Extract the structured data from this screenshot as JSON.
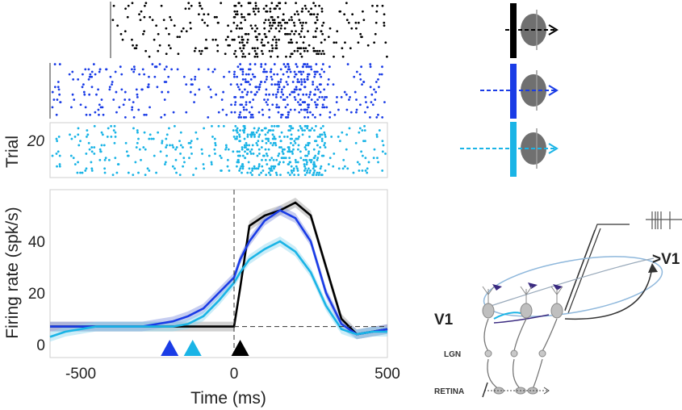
{
  "chart_data": {
    "type": "line",
    "xlabel": "Time (ms)",
    "ylabel": "Firing rate (spk/s)",
    "raster_ylabel": "Trial",
    "raster_tick": "20",
    "xlim": [
      -600,
      500
    ],
    "ylim": [
      -5,
      60
    ],
    "xticks": [
      "-500",
      "0",
      "500"
    ],
    "xtick_values": [
      -500,
      0,
      500
    ],
    "yticks": [
      "0",
      "20",
      "40"
    ],
    "ytick_values": [
      0,
      20,
      40
    ],
    "baseline_rate": 7,
    "x": [
      -600,
      -550,
      -500,
      -450,
      -400,
      -350,
      -300,
      -250,
      -200,
      -150,
      -100,
      -50,
      0,
      20,
      50,
      100,
      150,
      200,
      250,
      300,
      350,
      400,
      450,
      500
    ],
    "series": [
      {
        "name": "black",
        "color": "#000000",
        "band": "#9a9a9a",
        "values": [
          7,
          7,
          7,
          7,
          7,
          7,
          7,
          7,
          7,
          7,
          7,
          7,
          7,
          22,
          46,
          50,
          52,
          55,
          50,
          30,
          10,
          4,
          5,
          6
        ]
      },
      {
        "name": "blue",
        "color": "#1a3ce6",
        "band": "#8090e0",
        "values": [
          7,
          7,
          7,
          7,
          7,
          7,
          7,
          8,
          9,
          11,
          14,
          20,
          26,
          33,
          40,
          48,
          52,
          49,
          40,
          20,
          8,
          4,
          5,
          6
        ]
      },
      {
        "name": "cyan",
        "color": "#1ab4e6",
        "band": "#8fd6f0",
        "values": [
          3,
          5,
          6,
          7,
          7,
          7,
          7,
          7,
          7,
          8,
          11,
          17,
          24,
          28,
          33,
          37,
          40,
          36,
          28,
          15,
          6,
          4,
          5,
          5
        ]
      }
    ],
    "markers": [
      {
        "name": "blue-onset",
        "x": -210,
        "color": "#1a3ce6"
      },
      {
        "name": "cyan-onset",
        "x": -135,
        "color": "#1ab4e6"
      },
      {
        "name": "black-onset",
        "x": 20,
        "color": "#000000"
      }
    ],
    "rasters": [
      {
        "name": "black-raster",
        "color": "#000000",
        "trials": 20
      },
      {
        "name": "blue-raster",
        "color": "#1a3ce6",
        "trials": 22
      },
      {
        "name": "cyan-raster",
        "color": "#1ab4e6",
        "trials": 24
      }
    ]
  },
  "diagram": {
    "v1_label": "V1",
    "to_v1_label": ">V1",
    "lgn_label": "LGN",
    "retina_label": "RETINA"
  }
}
